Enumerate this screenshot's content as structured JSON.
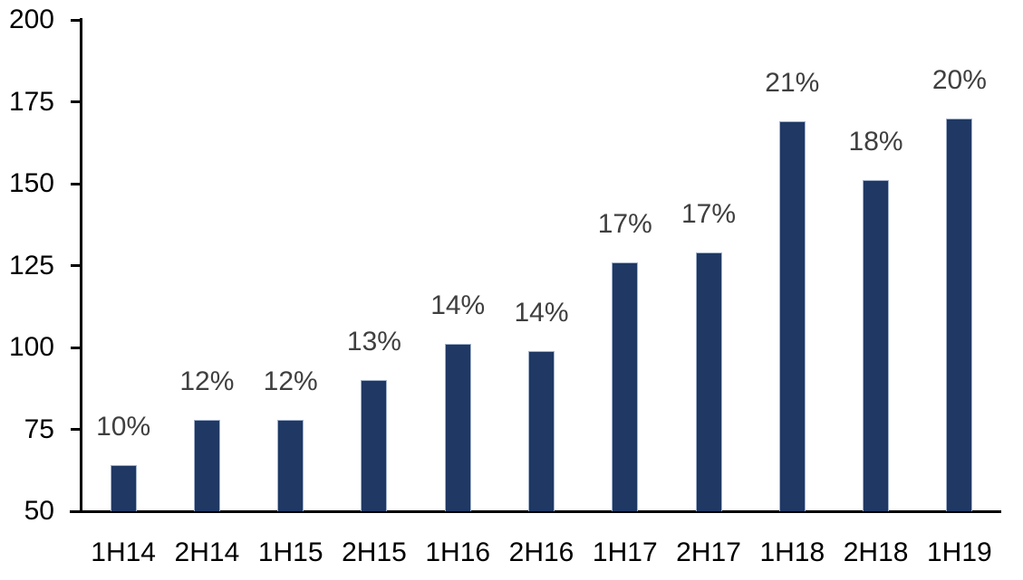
{
  "chart_data": {
    "type": "bar",
    "title": "",
    "xlabel": "",
    "ylabel": "",
    "categories": [
      "1H14",
      "2H14",
      "1H15",
      "2H15",
      "1H16",
      "2H16",
      "1H17",
      "2H17",
      "1H18",
      "2H18",
      "1H19"
    ],
    "values": [
      64,
      78,
      78,
      90,
      101,
      99,
      126,
      129,
      169,
      151,
      170
    ],
    "bar_labels": [
      "10%",
      "12%",
      "12%",
      "13%",
      "14%",
      "14%",
      "17%",
      "17%",
      "21%",
      "18%",
      "20%"
    ],
    "ylim": [
      50,
      200
    ],
    "yticks": [
      50,
      75,
      100,
      125,
      150,
      175,
      200
    ],
    "grid": false,
    "legend": false,
    "colors": {
      "bar_fill": "#1F3864",
      "bar_border": "#A3B2CC",
      "value_label": "#3F3F3F",
      "axis_text": "#000000",
      "axis_line": "#000000",
      "background": "#FFFFFF"
    }
  }
}
